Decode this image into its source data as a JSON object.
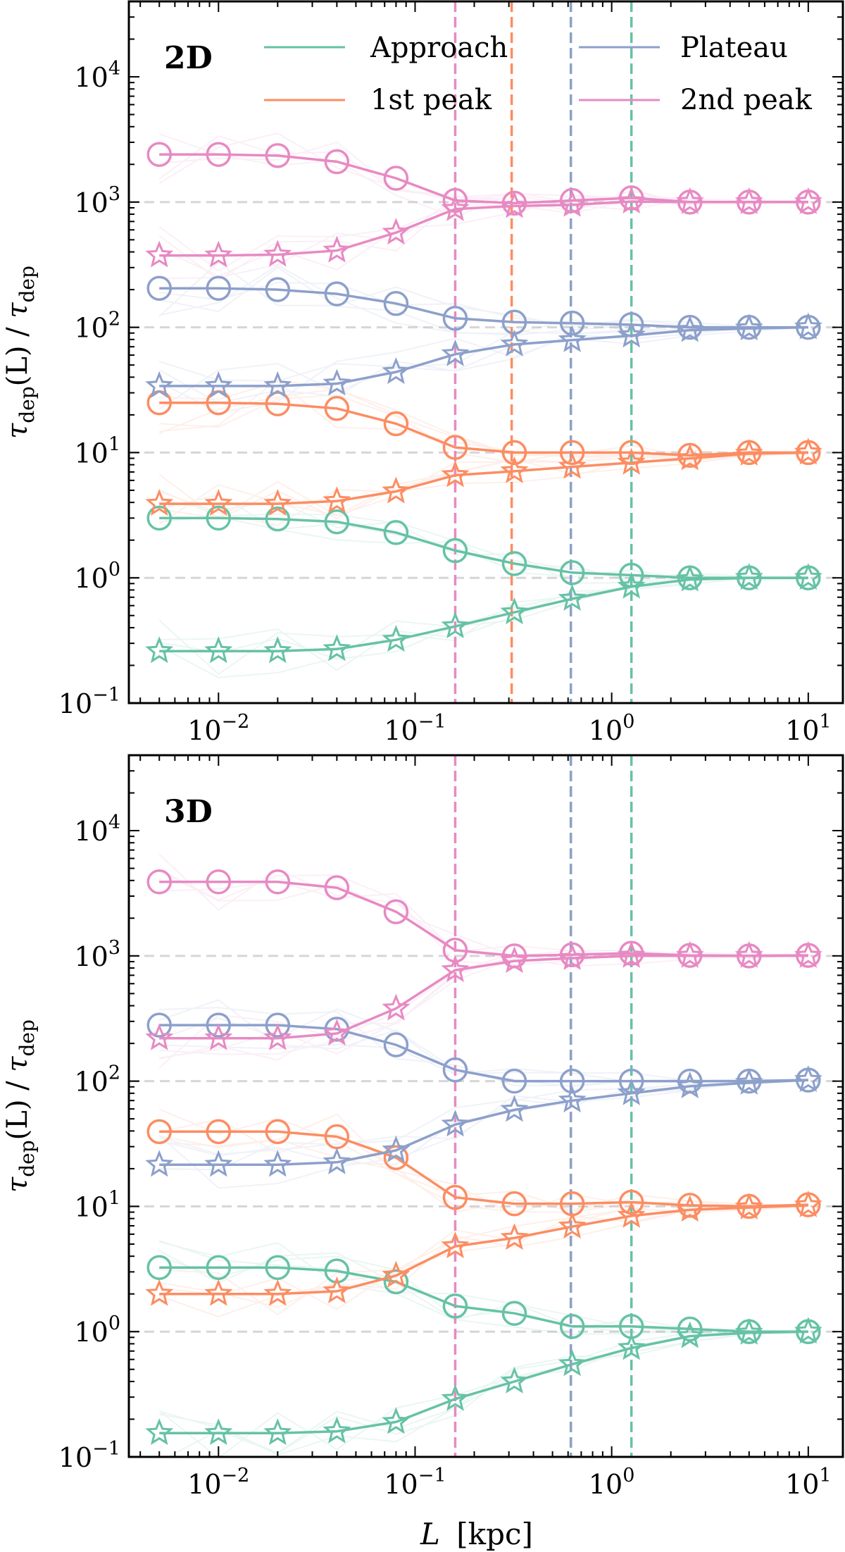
{
  "figure": {
    "xlabel_var": "L",
    "xlabel_unit": "[kpc]",
    "ylabel": "τdep(L) / τdep"
  },
  "legend": {
    "entries": [
      {
        "label": "Approach",
        "color": "#66c2a5"
      },
      {
        "label": "1st peak",
        "color": "#fc8d62"
      },
      {
        "label": "Plateau",
        "color": "#8da0cb"
      },
      {
        "label": "2nd peak",
        "color": "#e78ac3"
      }
    ],
    "placement": "top-right (panel 2D)"
  },
  "chart_data": [
    {
      "type": "line",
      "panel_label": "2D",
      "xscale": "log",
      "yscale": "log",
      "xlim": [
        0.0035,
        15
      ],
      "ylim": [
        0.1,
        40000
      ],
      "x": [
        0.005,
        0.01,
        0.02,
        0.04,
        0.08,
        0.16,
        0.32,
        0.63,
        1.26,
        2.5,
        5,
        10
      ],
      "x_ticks": [
        "10^-2",
        "10^-1",
        "10^0",
        "10^1"
      ],
      "y_ticks": [
        "10^-1",
        "10^0",
        "10^1",
        "10^2",
        "10^3",
        "10^4"
      ],
      "reference_lines": [
        1,
        10,
        100,
        1000
      ],
      "vertical_lines": [
        {
          "series": "2nd peak",
          "x": 0.16
        },
        {
          "series": "1st peak",
          "x": 0.31
        },
        {
          "series": "Plateau",
          "x": 0.62
        },
        {
          "series": "Approach",
          "x": 1.26
        }
      ],
      "series": [
        {
          "name": "Approach",
          "color": "#66c2a5",
          "marker": "circle",
          "values": [
            3.0,
            3.0,
            2.95,
            2.8,
            2.3,
            1.65,
            1.3,
            1.1,
            1.05,
            1.0,
            1.0,
            1.0
          ]
        },
        {
          "name": "Approach",
          "color": "#66c2a5",
          "marker": "star",
          "values": [
            0.26,
            0.26,
            0.26,
            0.27,
            0.32,
            0.41,
            0.53,
            0.68,
            0.85,
            0.97,
            1.0,
            1.0
          ]
        },
        {
          "name": "1st peak",
          "color": "#fc8d62",
          "marker": "circle",
          "values": [
            25,
            25,
            24.5,
            22.5,
            17,
            11,
            10,
            10,
            10,
            9.5,
            10,
            10
          ]
        },
        {
          "name": "1st peak",
          "color": "#fc8d62",
          "marker": "star",
          "values": [
            3.9,
            3.9,
            3.9,
            4.1,
            4.9,
            6.6,
            7.1,
            7.7,
            8.3,
            9.0,
            9.8,
            10
          ]
        },
        {
          "name": "Plateau",
          "color": "#8da0cb",
          "marker": "circle",
          "values": [
            205,
            205,
            200,
            185,
            155,
            118,
            110,
            108,
            105,
            100,
            100,
            100
          ]
        },
        {
          "name": "Plateau",
          "color": "#8da0cb",
          "marker": "star",
          "values": [
            34,
            34,
            34,
            35.5,
            44,
            61,
            73,
            79,
            86,
            95,
            98,
            100
          ]
        },
        {
          "name": "2nd peak",
          "color": "#e78ac3",
          "marker": "circle",
          "values": [
            2400,
            2400,
            2350,
            2100,
            1550,
            1030,
            980,
            1030,
            1080,
            1000,
            1000,
            1000
          ]
        },
        {
          "name": "2nd peak",
          "color": "#e78ac3",
          "marker": "star",
          "values": [
            375,
            375,
            380,
            410,
            570,
            880,
            930,
            950,
            1010,
            1000,
            1000,
            1000
          ]
        }
      ]
    },
    {
      "type": "line",
      "panel_label": "3D",
      "xscale": "log",
      "yscale": "log",
      "xlim": [
        0.0035,
        15
      ],
      "ylim": [
        0.1,
        40000
      ],
      "x": [
        0.005,
        0.01,
        0.02,
        0.04,
        0.08,
        0.16,
        0.32,
        0.63,
        1.26,
        2.5,
        5,
        10
      ],
      "x_ticks": [
        "10^-2",
        "10^-1",
        "10^0",
        "10^1"
      ],
      "y_ticks": [
        "10^-1",
        "10^0",
        "10^1",
        "10^2",
        "10^3",
        "10^4"
      ],
      "reference_lines": [
        1,
        10,
        100,
        1000
      ],
      "vertical_lines": [
        {
          "series": "2nd peak",
          "x": 0.16
        },
        {
          "series": "1st peak",
          "x": 0.62
        },
        {
          "series": "Plateau",
          "x": 0.62
        },
        {
          "series": "Approach",
          "x": 1.26
        }
      ],
      "series": [
        {
          "name": "Approach",
          "color": "#66c2a5",
          "marker": "circle",
          "values": [
            3.25,
            3.25,
            3.25,
            3.05,
            2.5,
            1.6,
            1.4,
            1.1,
            1.1,
            1.05,
            1.0,
            1.0
          ]
        },
        {
          "name": "Approach",
          "color": "#66c2a5",
          "marker": "star",
          "values": [
            0.155,
            0.155,
            0.155,
            0.16,
            0.19,
            0.29,
            0.4,
            0.55,
            0.74,
            0.92,
            0.98,
            1.0
          ]
        },
        {
          "name": "1st peak",
          "color": "#fc8d62",
          "marker": "circle",
          "values": [
            39.5,
            39.5,
            39.5,
            36,
            24.5,
            11.8,
            10.5,
            10.5,
            10.8,
            10.2,
            10,
            10.3
          ]
        },
        {
          "name": "1st peak",
          "color": "#fc8d62",
          "marker": "star",
          "values": [
            2.0,
            2.0,
            2.0,
            2.1,
            2.8,
            4.8,
            5.6,
            6.9,
            8.4,
            9.4,
            9.8,
            10.2
          ]
        },
        {
          "name": "Plateau",
          "color": "#8da0cb",
          "marker": "circle",
          "values": [
            280,
            280,
            280,
            260,
            195,
            123,
            100,
            100,
            100,
            100,
            100,
            102
          ]
        },
        {
          "name": "Plateau",
          "color": "#8da0cb",
          "marker": "star",
          "values": [
            21.5,
            21.5,
            21.5,
            22.5,
            28,
            45,
            59,
            70,
            80,
            91,
            97,
            102
          ]
        },
        {
          "name": "2nd peak",
          "color": "#e78ac3",
          "marker": "circle",
          "values": [
            3900,
            3900,
            3900,
            3500,
            2250,
            1110,
            1000,
            1020,
            1050,
            1010,
            1000,
            1010
          ]
        },
        {
          "name": "2nd peak",
          "color": "#e78ac3",
          "marker": "star",
          "values": [
            220,
            220,
            220,
            240,
            380,
            770,
            910,
            960,
            1000,
            1000,
            1000,
            1000
          ]
        }
      ]
    }
  ]
}
